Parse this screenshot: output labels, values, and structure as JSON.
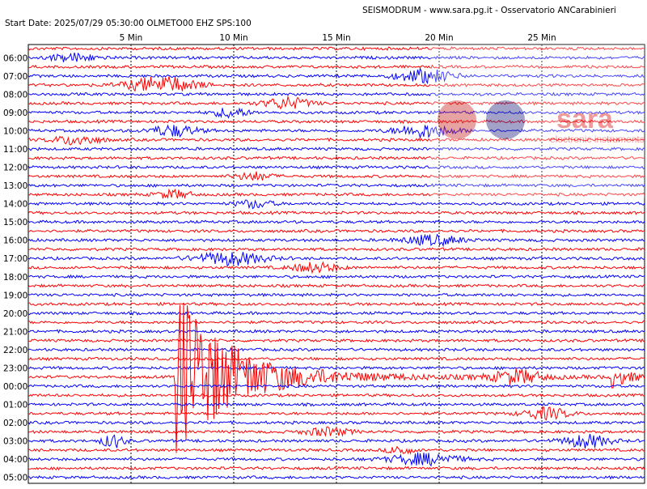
{
  "header": {
    "title": "SEISMODRUM - www.sara.pg.it - Osservatorio ANCarabinieri",
    "info": "Start Date: 2025/07/29 05:30:00 OLMETO00 EHZ  SPS:100"
  },
  "minute_labels": [
    "5 Min",
    "10 Min",
    "15 Min",
    "20 Min",
    "25 Min"
  ],
  "hour_labels": [
    "06:00",
    "07:00",
    "08:00",
    "09:00",
    "10:00",
    "11:00",
    "12:00",
    "13:00",
    "14:00",
    "15:00",
    "16:00",
    "17:00",
    "18:00",
    "19:00",
    "20:00",
    "21:00",
    "22:00",
    "23:00",
    "00:00",
    "01:00",
    "02:00",
    "03:00",
    "04:00",
    "05:00"
  ],
  "watermark": {
    "brand": "sara",
    "tagline": "electronic instruments"
  }
}
